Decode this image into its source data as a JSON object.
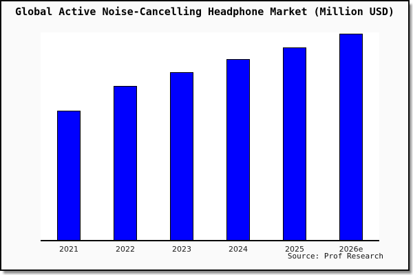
{
  "figure": {
    "background": "#fafafa",
    "plot_background": "#ffffff",
    "frame_border_color": "#0a0a0a"
  },
  "chart_data": {
    "type": "bar",
    "title": "Global Active Noise-Cancelling Headphone Market (Million USD)",
    "categories": [
      "2021",
      "2022",
      "2023",
      "2024",
      "2025",
      "2026e"
    ],
    "values": [
      62.8,
      74.9,
      81.4,
      87.8,
      93.5,
      100
    ],
    "values_note": "no y-axis tick labels shown in image; values estimated from bar heights, normalized to 2026e = 100",
    "xlabel": "",
    "ylabel": "",
    "ylim": [
      0,
      100.8
    ],
    "grid": false,
    "legend": false,
    "bar_color": "#0000ff",
    "bar_border_color": "#000000",
    "axis_line_color": "#000000",
    "source_note": "Source: Prof Research"
  }
}
